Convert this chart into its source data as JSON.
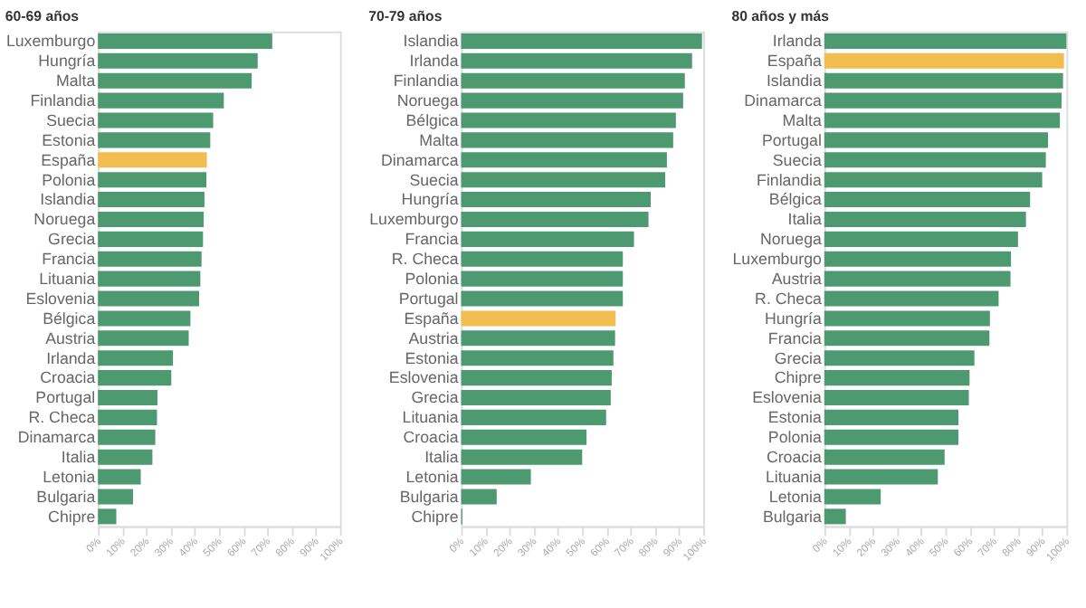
{
  "chart_data": [
    {
      "type": "bar",
      "orientation": "horizontal",
      "title": "60-69 años",
      "categories": [
        "Luxemburgo",
        "Hungría",
        "Malta",
        "Finlandia",
        "Suecia",
        "Estonia",
        "España",
        "Polonia",
        "Islandia",
        "Noruega",
        "Grecia",
        "Francia",
        "Lituania",
        "Eslovenia",
        "Bélgica",
        "Austria",
        "Irlanda",
        "Croacia",
        "Portugal",
        "R. Checa",
        "Dinamarca",
        "Italia",
        "Letonia",
        "Bulgaria",
        "Chipre"
      ],
      "values": [
        72,
        66,
        63.5,
        52,
        47.6,
        46.4,
        45,
        44.8,
        44,
        43.7,
        43.4,
        42.8,
        42.3,
        41.8,
        38.2,
        37.5,
        31,
        30.3,
        24.6,
        24.4,
        23.7,
        22.5,
        17.7,
        14.5,
        7.6
      ],
      "colors": [
        "#4e9a70",
        "#4e9a70",
        "#4e9a70",
        "#4e9a70",
        "#4e9a70",
        "#4e9a70",
        "#f2bd4f",
        "#4e9a70",
        "#4e9a70",
        "#4e9a70",
        "#4e9a70",
        "#4e9a70",
        "#4e9a70",
        "#4e9a70",
        "#4e9a70",
        "#4e9a70",
        "#4e9a70",
        "#4e9a70",
        "#4e9a70",
        "#4e9a70",
        "#4e9a70",
        "#4e9a70",
        "#4e9a70",
        "#4e9a70",
        "#4e9a70"
      ],
      "xlim": [
        0,
        100
      ],
      "xticks": [
        {
          "value": 0,
          "label": "0%"
        },
        {
          "value": 10,
          "label": "10%"
        },
        {
          "value": 20,
          "label": "20%"
        },
        {
          "value": 30,
          "label": "30%"
        },
        {
          "value": 40,
          "label": "40%"
        },
        {
          "value": 50,
          "label": "50%"
        },
        {
          "value": 60,
          "label": "60%"
        },
        {
          "value": 70,
          "label": "70%"
        },
        {
          "value": 80,
          "label": "80%"
        },
        {
          "value": 90,
          "label": "90%"
        },
        {
          "value": 100,
          "label": "100%"
        }
      ],
      "grid": false,
      "legend": false
    },
    {
      "type": "bar",
      "orientation": "horizontal",
      "title": "70-79 años",
      "categories": [
        "Islandia",
        "Irlanda",
        "Finlandia",
        "Noruega",
        "Bélgica",
        "Malta",
        "Dinamarca",
        "Suecia",
        "Hungría",
        "Luxemburgo",
        "Francia",
        "R. Checa",
        "Polonia",
        "Portugal",
        "España",
        "Austria",
        "Estonia",
        "Eslovenia",
        "Grecia",
        "Lituania",
        "Croacia",
        "Italia",
        "Letonia",
        "Bulgaria",
        "Chipre"
      ],
      "values": [
        99.5,
        95.4,
        92.4,
        91.7,
        88.7,
        87.6,
        85,
        84.3,
        78.3,
        77.4,
        71.4,
        66.8,
        66.8,
        66.8,
        63.8,
        63.6,
        62.9,
        62.2,
        61.8,
        59.9,
        51.8,
        50,
        28.8,
        14.7,
        0.5
      ],
      "colors": [
        "#4e9a70",
        "#4e9a70",
        "#4e9a70",
        "#4e9a70",
        "#4e9a70",
        "#4e9a70",
        "#4e9a70",
        "#4e9a70",
        "#4e9a70",
        "#4e9a70",
        "#4e9a70",
        "#4e9a70",
        "#4e9a70",
        "#4e9a70",
        "#f2bd4f",
        "#4e9a70",
        "#4e9a70",
        "#4e9a70",
        "#4e9a70",
        "#4e9a70",
        "#4e9a70",
        "#4e9a70",
        "#4e9a70",
        "#4e9a70",
        "#4e9a70"
      ],
      "xlim": [
        0,
        100
      ],
      "xticks": [
        {
          "value": 0,
          "label": "0%"
        },
        {
          "value": 10,
          "label": "10%"
        },
        {
          "value": 20,
          "label": "20%"
        },
        {
          "value": 30,
          "label": "30%"
        },
        {
          "value": 40,
          "label": "40%"
        },
        {
          "value": 50,
          "label": "50%"
        },
        {
          "value": 60,
          "label": "60%"
        },
        {
          "value": 70,
          "label": "70%"
        },
        {
          "value": 80,
          "label": "80%"
        },
        {
          "value": 90,
          "label": "90%"
        },
        {
          "value": 100,
          "label": "100%"
        }
      ],
      "grid": false,
      "legend": false
    },
    {
      "type": "bar",
      "orientation": "horizontal",
      "title": "80 años y más",
      "categories": [
        "Irlanda",
        "España",
        "Islandia",
        "Dinamarca",
        "Malta",
        "Portugal",
        "Suecia",
        "Finlandia",
        "Bélgica",
        "Italia",
        "Noruega",
        "Luxemburgo",
        "Austria",
        "R. Checa",
        "Hungría",
        "Francia",
        "Grecia",
        "Chipre",
        "Eslovenia",
        "Estonia",
        "Polonia",
        "Croacia",
        "Lituania",
        "Letonia",
        "Bulgaria"
      ],
      "values": [
        100,
        99,
        98.6,
        98,
        97.3,
        92.4,
        91.5,
        90,
        85,
        83.3,
        80,
        77.1,
        76.9,
        72,
        68.4,
        68.2,
        62,
        60,
        59.7,
        55.4,
        55.4,
        49.7,
        46.9,
        23.3,
        8.9
      ],
      "colors": [
        "#4e9a70",
        "#f2bd4f",
        "#4e9a70",
        "#4e9a70",
        "#4e9a70",
        "#4e9a70",
        "#4e9a70",
        "#4e9a70",
        "#4e9a70",
        "#4e9a70",
        "#4e9a70",
        "#4e9a70",
        "#4e9a70",
        "#4e9a70",
        "#4e9a70",
        "#4e9a70",
        "#4e9a70",
        "#4e9a70",
        "#4e9a70",
        "#4e9a70",
        "#4e9a70",
        "#4e9a70",
        "#4e9a70",
        "#4e9a70",
        "#4e9a70"
      ],
      "xlim": [
        0,
        100
      ],
      "xticks": [
        {
          "value": 0,
          "label": "0%"
        },
        {
          "value": 10,
          "label": "10%"
        },
        {
          "value": 20,
          "label": "20%"
        },
        {
          "value": 30,
          "label": "30%"
        },
        {
          "value": 40,
          "label": "40%"
        },
        {
          "value": 50,
          "label": "50%"
        },
        {
          "value": 60,
          "label": "60%"
        },
        {
          "value": 70,
          "label": "70%"
        },
        {
          "value": 80,
          "label": "80%"
        },
        {
          "value": 90,
          "label": "90%"
        },
        {
          "value": 100,
          "label": "100%"
        }
      ],
      "grid": false,
      "legend": false
    }
  ]
}
